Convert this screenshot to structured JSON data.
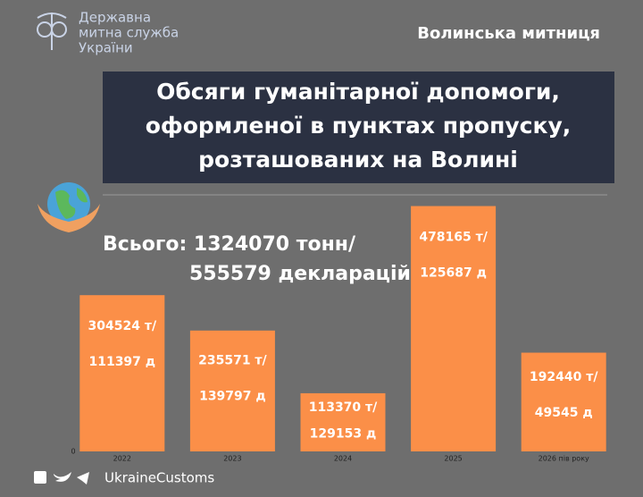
{
  "header": {
    "org_line1": "Державна",
    "org_line2": "митна служба",
    "org_line3": "України",
    "office": "Волинська митниця"
  },
  "chart_data": {
    "type": "bar",
    "title": [
      "Обсяги гуманітарної допомоги,",
      "оформленої в пунктах пропуску,",
      "розташованих на Волині"
    ],
    "total_line1": "Всього: 1324070 тонн/",
    "total_line2": "555579 декларацій",
    "categories": [
      "2022",
      "2023",
      "2024",
      "2025",
      "2026 пів року"
    ],
    "values": [
      304524,
      235571,
      113370,
      478165,
      192440
    ],
    "value_labels": [
      "304524 т/",
      "235571 т/",
      "113370 т/",
      "478165 т/",
      "192440 т/"
    ],
    "declaration_labels": [
      "111397 д",
      "139797 д",
      "129153 д",
      "125687 д",
      "49545 д"
    ],
    "color": "#fb8f48",
    "ylim": [
      0,
      500000
    ],
    "yticks": [
      0
    ]
  },
  "footer": {
    "handle": "UkraineCustoms"
  }
}
